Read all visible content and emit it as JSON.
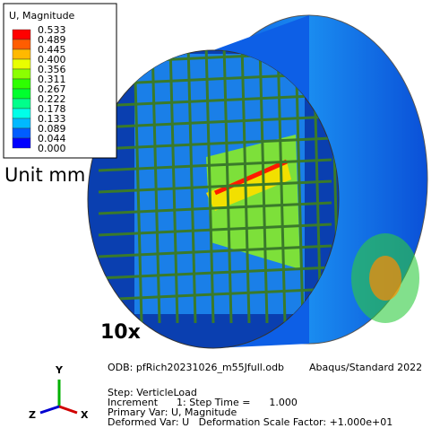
{
  "legend": {
    "title": "U, Magnitude",
    "values": [
      "0.533",
      "0.489",
      "0.445",
      "0.400",
      "0.356",
      "0.311",
      "0.267",
      "0.222",
      "0.178",
      "0.133",
      "0.089",
      "0.044",
      "0.000"
    ],
    "colors": [
      "#ff0000",
      "#ff5d00",
      "#ffb900",
      "#e8ff00",
      "#8bff00",
      "#2eff00",
      "#00ff2e",
      "#00ff8b",
      "#00ffe8",
      "#00b9ff",
      "#005dff",
      "#0000ff"
    ]
  },
  "unit_label": "Unit mm",
  "scale_label": "10x",
  "triad": {
    "y": "Y",
    "z": "Z",
    "x": "X"
  },
  "info": {
    "odb": "ODB: pfRich20231026_m55Jfull.odb",
    "solver": "Abaqus/Standard 2022",
    "step": "Step: VerticleLoad",
    "increment": "Increment      1: Step Time =      1.000",
    "primary": "Primary Var: U, Magnitude",
    "deformed": "Deformed Var: U   Deformation Scale Factor: +1.000e+01"
  }
}
